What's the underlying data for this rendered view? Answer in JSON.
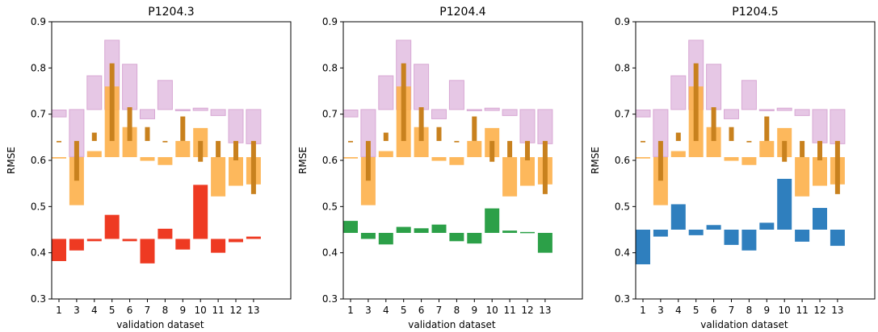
{
  "chart_data": [
    {
      "type": "bar",
      "title": "P1204.3",
      "xlabel": "validation dataset",
      "ylabel": "RMSE",
      "ylim": [
        0.3,
        0.9
      ],
      "yticks": [
        "0.3",
        "0.4",
        "0.5",
        "0.6",
        "0.7",
        "0.8",
        "0.9"
      ],
      "categories": [
        "1",
        "3",
        "4",
        "5",
        "6",
        "7",
        "8",
        "9",
        "10",
        "11",
        "12",
        "13"
      ],
      "grid": false,
      "series": [
        {
          "color": "#e2bde0",
          "ranges": [
            [
              0.694,
              0.709
            ],
            [
              0.608,
              0.71
            ],
            [
              0.71,
              0.783
            ],
            [
              0.71,
              0.86
            ],
            [
              0.71,
              0.808
            ],
            [
              0.69,
              0.71
            ],
            [
              0.71,
              0.773
            ],
            [
              0.708,
              0.71
            ],
            [
              0.708,
              0.713
            ],
            [
              0.697,
              0.71
            ],
            [
              0.638,
              0.71
            ],
            [
              0.636,
              0.71
            ]
          ]
        },
        {
          "color": "#fdb04a",
          "ranges": [
            [
              0.604,
              0.607
            ],
            [
              0.503,
              0.607
            ],
            [
              0.607,
              0.62
            ],
            [
              0.607,
              0.76
            ],
            [
              0.607,
              0.672
            ],
            [
              0.599,
              0.607
            ],
            [
              0.59,
              0.607
            ],
            [
              0.607,
              0.642
            ],
            [
              0.607,
              0.67
            ],
            [
              0.522,
              0.607
            ],
            [
              0.545,
              0.607
            ],
            [
              0.548,
              0.607
            ]
          ]
        },
        {
          "color": "#c8811e",
          "ranges": [
            [
              0.639,
              0.642
            ],
            [
              0.556,
              0.642
            ],
            [
              0.642,
              0.66
            ],
            [
              0.642,
              0.81
            ],
            [
              0.642,
              0.715
            ],
            [
              0.642,
              0.672
            ],
            [
              0.639,
              0.642
            ],
            [
              0.642,
              0.695
            ],
            [
              0.597,
              0.642
            ],
            [
              0.607,
              0.642
            ],
            [
              0.6,
              0.642
            ],
            [
              0.527,
              0.642
            ]
          ]
        },
        {
          "color": "#ee3a22",
          "ranges": [
            [
              0.382,
              0.43
            ],
            [
              0.405,
              0.43
            ],
            [
              0.425,
              0.43
            ],
            [
              0.43,
              0.482
            ],
            [
              0.425,
              0.43
            ],
            [
              0.377,
              0.43
            ],
            [
              0.43,
              0.452
            ],
            [
              0.407,
              0.43
            ],
            [
              0.43,
              0.547
            ],
            [
              0.4,
              0.43
            ],
            [
              0.423,
              0.43
            ],
            [
              0.43,
              0.435
            ]
          ]
        }
      ]
    },
    {
      "type": "bar",
      "title": "P1204.4",
      "xlabel": "validation dataset",
      "ylabel": "RMSE",
      "ylim": [
        0.3,
        0.9
      ],
      "yticks": [
        "0.3",
        "0.4",
        "0.5",
        "0.6",
        "0.7",
        "0.8",
        "0.9"
      ],
      "categories": [
        "1",
        "3",
        "4",
        "5",
        "6",
        "7",
        "8",
        "9",
        "10",
        "11",
        "12",
        "13"
      ],
      "grid": false,
      "series": [
        {
          "color": "#e2bde0",
          "ranges": [
            [
              0.694,
              0.709
            ],
            [
              0.608,
              0.71
            ],
            [
              0.71,
              0.783
            ],
            [
              0.71,
              0.86
            ],
            [
              0.71,
              0.808
            ],
            [
              0.69,
              0.71
            ],
            [
              0.71,
              0.773
            ],
            [
              0.708,
              0.71
            ],
            [
              0.708,
              0.713
            ],
            [
              0.697,
              0.71
            ],
            [
              0.638,
              0.71
            ],
            [
              0.636,
              0.71
            ]
          ]
        },
        {
          "color": "#fdb04a",
          "ranges": [
            [
              0.604,
              0.607
            ],
            [
              0.503,
              0.607
            ],
            [
              0.607,
              0.62
            ],
            [
              0.607,
              0.76
            ],
            [
              0.607,
              0.672
            ],
            [
              0.599,
              0.607
            ],
            [
              0.59,
              0.607
            ],
            [
              0.607,
              0.642
            ],
            [
              0.607,
              0.67
            ],
            [
              0.522,
              0.607
            ],
            [
              0.545,
              0.607
            ],
            [
              0.548,
              0.607
            ]
          ]
        },
        {
          "color": "#c8811e",
          "ranges": [
            [
              0.639,
              0.642
            ],
            [
              0.556,
              0.642
            ],
            [
              0.642,
              0.66
            ],
            [
              0.642,
              0.81
            ],
            [
              0.642,
              0.715
            ],
            [
              0.642,
              0.672
            ],
            [
              0.639,
              0.642
            ],
            [
              0.642,
              0.695
            ],
            [
              0.597,
              0.642
            ],
            [
              0.607,
              0.642
            ],
            [
              0.6,
              0.642
            ],
            [
              0.527,
              0.642
            ]
          ]
        },
        {
          "color": "#2ca048",
          "ranges": [
            [
              0.443,
              0.469
            ],
            [
              0.43,
              0.443
            ],
            [
              0.418,
              0.443
            ],
            [
              0.443,
              0.456
            ],
            [
              0.443,
              0.453
            ],
            [
              0.443,
              0.461
            ],
            [
              0.425,
              0.443
            ],
            [
              0.42,
              0.443
            ],
            [
              0.443,
              0.496
            ],
            [
              0.443,
              0.448
            ],
            [
              0.443,
              0.445
            ],
            [
              0.4,
              0.443
            ]
          ]
        }
      ]
    },
    {
      "type": "bar",
      "title": "P1204.5",
      "xlabel": "validation dataset",
      "ylabel": "RMSE",
      "ylim": [
        0.3,
        0.9
      ],
      "yticks": [
        "0.3",
        "0.4",
        "0.5",
        "0.6",
        "0.7",
        "0.8",
        "0.9"
      ],
      "categories": [
        "1",
        "3",
        "4",
        "5",
        "6",
        "7",
        "8",
        "9",
        "10",
        "11",
        "12",
        "13"
      ],
      "grid": false,
      "series": [
        {
          "color": "#e2bde0",
          "ranges": [
            [
              0.694,
              0.709
            ],
            [
              0.608,
              0.71
            ],
            [
              0.71,
              0.783
            ],
            [
              0.71,
              0.86
            ],
            [
              0.71,
              0.808
            ],
            [
              0.69,
              0.71
            ],
            [
              0.71,
              0.773
            ],
            [
              0.708,
              0.71
            ],
            [
              0.708,
              0.713
            ],
            [
              0.697,
              0.71
            ],
            [
              0.638,
              0.71
            ],
            [
              0.636,
              0.71
            ]
          ]
        },
        {
          "color": "#fdb04a",
          "ranges": [
            [
              0.604,
              0.607
            ],
            [
              0.503,
              0.607
            ],
            [
              0.607,
              0.62
            ],
            [
              0.607,
              0.76
            ],
            [
              0.607,
              0.672
            ],
            [
              0.599,
              0.607
            ],
            [
              0.59,
              0.607
            ],
            [
              0.607,
              0.642
            ],
            [
              0.607,
              0.67
            ],
            [
              0.522,
              0.607
            ],
            [
              0.545,
              0.607
            ],
            [
              0.548,
              0.607
            ]
          ]
        },
        {
          "color": "#c8811e",
          "ranges": [
            [
              0.639,
              0.642
            ],
            [
              0.556,
              0.642
            ],
            [
              0.642,
              0.66
            ],
            [
              0.642,
              0.81
            ],
            [
              0.642,
              0.715
            ],
            [
              0.642,
              0.672
            ],
            [
              0.639,
              0.642
            ],
            [
              0.642,
              0.695
            ],
            [
              0.597,
              0.642
            ],
            [
              0.607,
              0.642
            ],
            [
              0.6,
              0.642
            ],
            [
              0.527,
              0.642
            ]
          ]
        },
        {
          "color": "#2f7fbe",
          "ranges": [
            [
              0.375,
              0.45
            ],
            [
              0.435,
              0.45
            ],
            [
              0.45,
              0.505
            ],
            [
              0.438,
              0.45
            ],
            [
              0.45,
              0.46
            ],
            [
              0.417,
              0.45
            ],
            [
              0.405,
              0.45
            ],
            [
              0.45,
              0.465
            ],
            [
              0.45,
              0.56
            ],
            [
              0.424,
              0.45
            ],
            [
              0.45,
              0.497
            ],
            [
              0.415,
              0.45
            ]
          ]
        }
      ]
    }
  ]
}
